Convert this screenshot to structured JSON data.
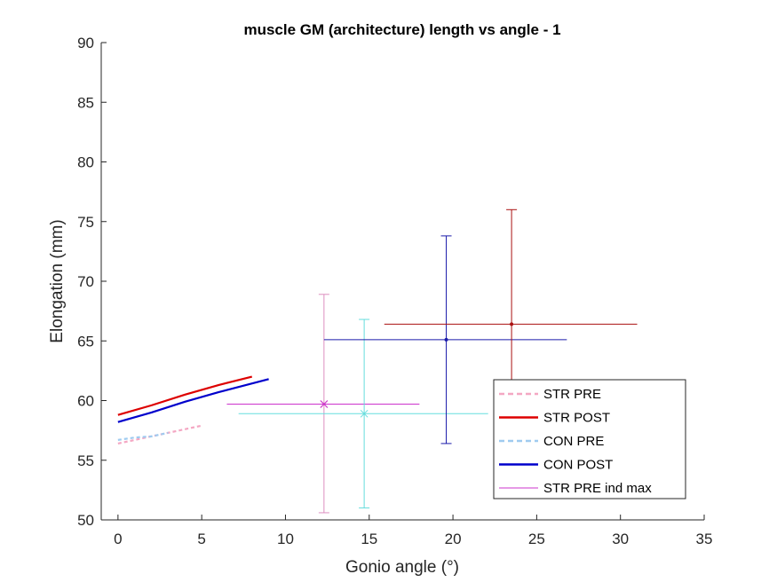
{
  "chart_data": {
    "type": "line",
    "title": "muscle GM (architecture) length vs angle - 1",
    "xlabel": "Gonio angle (°)",
    "ylabel": "Elongation (mm)",
    "xlim": [
      -1,
      35
    ],
    "ylim": [
      50,
      90
    ],
    "xticks": [
      0,
      5,
      10,
      15,
      20,
      25,
      30,
      35
    ],
    "yticks": [
      50,
      55,
      60,
      65,
      70,
      75,
      80,
      85,
      90
    ],
    "grid": false,
    "legend_position": "lower-right",
    "series": [
      {
        "name": "STR PRE",
        "color": "#f4a7c3",
        "dash": true,
        "x": [
          0,
          1,
          2,
          3,
          4,
          5
        ],
        "y": [
          56.4,
          56.7,
          57.0,
          57.3,
          57.6,
          57.9
        ]
      },
      {
        "name": "STR POST",
        "color": "#dd0000",
        "dash": false,
        "x": [
          0,
          2,
          4,
          6,
          8
        ],
        "y": [
          58.8,
          59.6,
          60.5,
          61.3,
          62.0
        ]
      },
      {
        "name": "CON PRE",
        "color": "#9fcbf0",
        "dash": true,
        "x": [
          0,
          1,
          2,
          3
        ],
        "y": [
          56.7,
          56.9,
          57.0,
          57.3
        ]
      },
      {
        "name": "CON POST",
        "color": "#0000cc",
        "dash": false,
        "x": [
          0,
          2,
          4,
          6,
          9
        ],
        "y": [
          58.2,
          59.0,
          59.9,
          60.7,
          61.8
        ]
      },
      {
        "name": "STR PRE ind max",
        "color": "#cc33cc",
        "dash": false,
        "x": [],
        "y": []
      }
    ],
    "error_points": [
      {
        "color": "#dd8fc0",
        "marker": "x",
        "x": 12.3,
        "y": 59.7,
        "xmin": 12.3,
        "xmax": 12.3,
        "ymin": 50.6,
        "ymax": 68.9
      },
      {
        "color": "#cc33cc",
        "marker": "x",
        "x": 12.3,
        "y": 59.7,
        "xmin": 6.5,
        "xmax": 18.0,
        "ymin": 59.7,
        "ymax": 59.7
      },
      {
        "color": "#66dddd",
        "marker": "x",
        "x": 14.7,
        "y": 58.9,
        "xmin": 7.2,
        "xmax": 22.1,
        "ymin": 51.0,
        "ymax": 66.8
      },
      {
        "color": "#1a1aaa",
        "marker": "dot",
        "x": 19.6,
        "y": 65.1,
        "xmin": 12.3,
        "xmax": 26.8,
        "ymin": 56.4,
        "ymax": 73.8
      },
      {
        "color": "#aa1111",
        "marker": "dot",
        "x": 23.5,
        "y": 66.4,
        "xmin": 15.9,
        "xmax": 31.0,
        "ymin": 56.8,
        "ymax": 76.0
      }
    ]
  }
}
